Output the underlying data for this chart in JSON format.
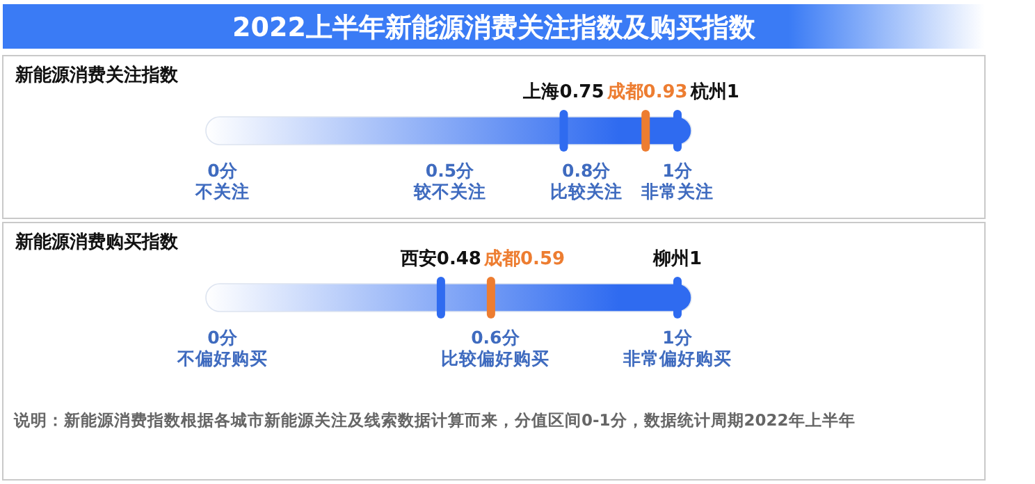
{
  "chart_data": [
    {
      "type": "other",
      "title": "2022上半年新能源消费关注指数及购买指数",
      "subtitle": "新能源消费关注指数",
      "values": [
        0.75,
        0.93,
        1
      ],
      "colors": [
        "#2f6bf0",
        "#ed7d31",
        "#2f6bf0"
      ],
      "value_labels": [
        "上海0.75",
        "成都0.93",
        "杭州1"
      ],
      "annotations": [
        {
          "text": "0分"
        },
        {
          "text": "0.5分"
        },
        {
          "text": "0.8分"
        },
        {
          "text": "1分"
        },
        "不关注",
        "较不关注",
        "比较关注",
        "非常关注"
      ]
    },
    {
      "type": "other",
      "subtitle": "新能源消费购买指数",
      "values": [
        0.48,
        0.59,
        1
      ],
      "colors": [
        "#2f6bf0",
        "#ed7d31",
        "#2f6bf0"
      ],
      "value_labels": [
        "西安0.48",
        "成都0.59",
        "柳州1"
      ],
      "annotations": [
        {
          "text": "0分"
        },
        {
          "text": "0.6分"
        },
        {
          "text": "1分"
        },
        "不偏好购买",
        "比较偏好购买",
        "非常偏好购买",
        "说明：新能源消费指数根据各城市新能源关注及线索数据计算而来，分值区间0-1分，数据统计周期2022年上半年"
      ]
    }
  ]
}
